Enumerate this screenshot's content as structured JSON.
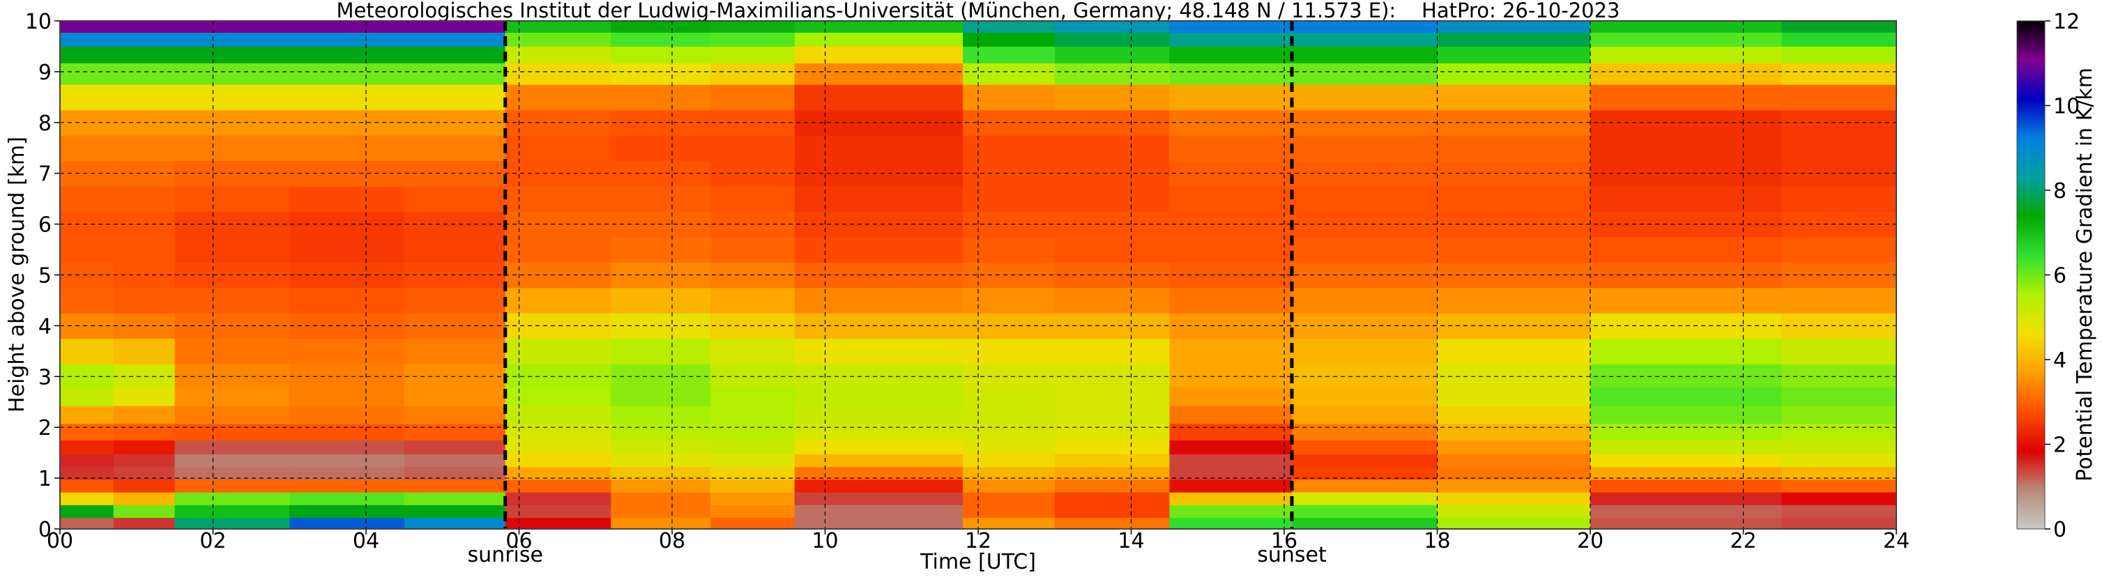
{
  "chart_data": {
    "type": "heatmap",
    "title": "Meteorologisches Institut der Ludwig-Maximilians-Universität (München, Germany; 48.148 N / 11.573 E):    HatPro: 26-10-2023",
    "xlabel": "Time [UTC]",
    "ylabel": "Height above ground [km]",
    "xlim": [
      0,
      24
    ],
    "ylim": [
      0,
      10
    ],
    "x_ticks": [
      0,
      2,
      4,
      6,
      8,
      10,
      12,
      14,
      16,
      18,
      20,
      22,
      24
    ],
    "x_tick_labels": [
      "00",
      "02",
      "04",
      "06",
      "08",
      "10",
      "12",
      "14",
      "16",
      "18",
      "20",
      "22",
      "24"
    ],
    "y_ticks": [
      0,
      1,
      2,
      3,
      4,
      5,
      6,
      7,
      8,
      9,
      10
    ],
    "y_tick_labels": [
      "0",
      "1",
      "2",
      "3",
      "4",
      "5",
      "6",
      "7",
      "8",
      "9",
      "10"
    ],
    "grid": true,
    "colorbar": {
      "label": "Potential Temperature Gradient in K/km",
      "range": [
        0,
        12
      ],
      "ticks": [
        0,
        2,
        4,
        6,
        8,
        10,
        12
      ],
      "tick_labels": [
        "0",
        "2",
        "4",
        "6",
        "8",
        "10",
        "12"
      ],
      "colors": [
        "#c8c8c8",
        "#b88a7a",
        "#e00000",
        "#ff5000",
        "#ffa000",
        "#f0e000",
        "#b0f000",
        "#30e030",
        "#00a800",
        "#00a0a0",
        "#0080e0",
        "#0000c0",
        "#800090",
        "#000000"
      ]
    },
    "annotations": [
      {
        "label": "sunrise",
        "x": 5.82
      },
      {
        "label": "sunset",
        "x": 16.1
      }
    ],
    "heights_km": [
      0.1,
      0.35,
      0.6,
      0.85,
      1.1,
      1.35,
      1.6,
      1.9,
      2.25,
      2.6,
      3.0,
      3.5,
      4.0,
      4.5,
      5.0,
      5.5,
      6.0,
      6.5,
      7.0,
      7.5,
      8.0,
      8.5,
      9.0,
      9.35,
      9.65,
      9.9
    ],
    "columns": [
      {
        "x0": 0.0,
        "x1": 0.7,
        "values": [
          1.2,
          7.5,
          4.5,
          2.8,
          1.5,
          1.6,
          2.3,
          3.0,
          3.8,
          5.3,
          5.5,
          4.3,
          3.4,
          3.0,
          2.9,
          2.8,
          2.8,
          2.9,
          3.1,
          3.3,
          3.6,
          4.6,
          6.0,
          7.5,
          9.0,
          11.0
        ]
      },
      {
        "x0": 0.7,
        "x1": 1.5,
        "values": [
          1.5,
          6.0,
          4.0,
          2.5,
          1.4,
          1.5,
          2.1,
          2.9,
          3.6,
          4.8,
          5.1,
          4.1,
          3.3,
          2.9,
          2.8,
          2.8,
          2.8,
          2.9,
          3.1,
          3.3,
          3.6,
          4.6,
          6.0,
          7.5,
          9.0,
          11.0
        ]
      },
      {
        "x0": 1.5,
        "x1": 3.0,
        "values": [
          8.0,
          7.0,
          6.0,
          3.0,
          1.1,
          1.0,
          1.3,
          2.8,
          3.3,
          3.5,
          3.4,
          3.2,
          3.1,
          2.9,
          2.7,
          2.6,
          2.6,
          2.8,
          3.0,
          3.3,
          3.6,
          4.6,
          6.0,
          7.5,
          9.0,
          11.0
        ]
      },
      {
        "x0": 3.0,
        "x1": 4.5,
        "values": [
          9.5,
          7.5,
          6.2,
          3.0,
          1.1,
          1.0,
          1.3,
          2.8,
          3.2,
          3.3,
          3.3,
          3.2,
          3.0,
          2.8,
          2.6,
          2.5,
          2.5,
          2.7,
          3.0,
          3.3,
          3.6,
          4.6,
          6.0,
          7.5,
          9.0,
          11.0
        ]
      },
      {
        "x0": 4.5,
        "x1": 5.82,
        "values": [
          9.0,
          7.5,
          6.0,
          3.0,
          1.2,
          1.1,
          1.4,
          2.9,
          3.3,
          3.5,
          3.5,
          3.3,
          3.1,
          2.9,
          2.7,
          2.6,
          2.6,
          2.8,
          3.0,
          3.3,
          3.6,
          4.6,
          6.0,
          7.5,
          9.0,
          11.0
        ]
      },
      {
        "x0": 5.82,
        "x1": 7.2,
        "values": [
          1.8,
          1.4,
          1.5,
          3.0,
          3.8,
          4.5,
          4.8,
          5.0,
          5.3,
          5.5,
          5.6,
          5.2,
          4.5,
          3.8,
          3.2,
          3.0,
          3.0,
          2.9,
          2.8,
          2.8,
          2.9,
          3.3,
          4.5,
          5.2,
          6.0,
          7.0
        ]
      },
      {
        "x0": 7.2,
        "x1": 8.5,
        "values": [
          3.5,
          3.2,
          3.2,
          3.6,
          4.2,
          4.8,
          5.1,
          5.4,
          5.6,
          5.8,
          5.8,
          5.4,
          4.7,
          4.0,
          3.4,
          3.1,
          3.0,
          2.9,
          2.8,
          2.7,
          2.8,
          3.3,
          4.6,
          5.5,
          6.3,
          7.3
        ]
      },
      {
        "x0": 8.5,
        "x1": 9.6,
        "values": [
          3.0,
          3.4,
          3.6,
          4.0,
          4.4,
          4.9,
          5.2,
          5.4,
          5.5,
          5.5,
          5.3,
          5.0,
          4.4,
          3.8,
          3.3,
          3.0,
          2.9,
          2.8,
          2.7,
          2.7,
          2.8,
          3.2,
          4.4,
          5.4,
          6.2,
          7.2
        ]
      },
      {
        "x0": 9.6,
        "x1": 11.8,
        "values": [
          1.1,
          1.1,
          1.4,
          2.2,
          3.2,
          4.0,
          4.6,
          5.0,
          5.2,
          5.3,
          5.2,
          4.7,
          4.0,
          3.4,
          3.0,
          2.7,
          2.6,
          2.5,
          2.4,
          2.4,
          2.3,
          2.5,
          3.4,
          4.5,
          5.6,
          7.0
        ]
      },
      {
        "x0": 11.8,
        "x1": 13.0,
        "values": [
          3.6,
          3.0,
          3.0,
          3.5,
          4.0,
          4.5,
          4.8,
          5.0,
          5.1,
          5.1,
          5.0,
          4.6,
          4.0,
          3.5,
          3.1,
          2.9,
          2.8,
          2.7,
          2.7,
          2.7,
          2.9,
          3.5,
          5.4,
          6.4,
          7.4,
          8.2
        ]
      },
      {
        "x0": 13.0,
        "x1": 14.5,
        "values": [
          3.2,
          2.6,
          2.6,
          3.2,
          3.8,
          4.3,
          4.6,
          4.9,
          5.0,
          5.0,
          5.0,
          4.6,
          4.0,
          3.4,
          3.0,
          2.8,
          2.8,
          2.7,
          2.7,
          2.7,
          2.9,
          3.6,
          5.8,
          6.8,
          7.8,
          8.6
        ]
      },
      {
        "x0": 14.5,
        "x1": 16.1,
        "values": [
          6.5,
          6.0,
          4.2,
          2.0,
          1.4,
          1.4,
          1.8,
          2.6,
          3.2,
          3.6,
          3.8,
          3.8,
          3.6,
          3.2,
          2.9,
          2.8,
          2.8,
          2.8,
          2.9,
          3.0,
          3.2,
          3.8,
          6.0,
          7.2,
          8.2,
          9.2
        ]
      },
      {
        "x0": 16.1,
        "x1": 18.0,
        "values": [
          6.8,
          6.2,
          5.0,
          3.4,
          2.6,
          2.5,
          2.8,
          3.3,
          3.8,
          4.0,
          4.1,
          4.0,
          3.7,
          3.4,
          3.1,
          2.9,
          2.8,
          2.8,
          2.9,
          3.0,
          3.2,
          3.8,
          6.0,
          7.2,
          8.2,
          9.2
        ]
      },
      {
        "x0": 18.0,
        "x1": 20.0,
        "values": [
          5.6,
          5.2,
          4.4,
          3.6,
          3.2,
          3.3,
          3.6,
          4.0,
          4.4,
          4.8,
          4.9,
          4.6,
          4.0,
          3.5,
          3.1,
          2.9,
          2.8,
          2.8,
          2.9,
          3.0,
          3.2,
          3.8,
          5.6,
          6.8,
          7.8,
          8.8
        ]
      },
      {
        "x0": 20.0,
        "x1": 22.5,
        "values": [
          1.3,
          1.2,
          1.6,
          2.8,
          3.8,
          4.6,
          5.2,
          5.6,
          6.0,
          6.2,
          6.0,
          5.5,
          4.6,
          3.6,
          3.0,
          2.8,
          2.6,
          2.5,
          2.4,
          2.4,
          2.4,
          3.0,
          4.2,
          5.4,
          6.2,
          7.0
        ]
      },
      {
        "x0": 22.5,
        "x1": 24.0,
        "values": [
          1.4,
          1.3,
          1.8,
          3.0,
          4.0,
          4.8,
          5.2,
          5.5,
          5.8,
          6.0,
          5.8,
          5.2,
          4.4,
          3.6,
          3.1,
          2.9,
          2.7,
          2.6,
          2.5,
          2.5,
          2.5,
          3.0,
          4.4,
          5.6,
          6.6,
          7.6
        ]
      }
    ]
  }
}
